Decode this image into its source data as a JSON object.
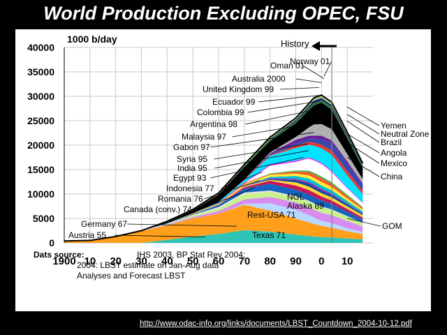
{
  "slide": {
    "title": "World Production Excluding OPEC, FSU",
    "footer_url": "http://www.odac-info.org/links/documents/LBST_Countdown_2004-10-12.pdf"
  },
  "source_note": {
    "label": "Dats source:",
    "line1": "IHS 2003, BP Stat Rev  2004;",
    "line2": "2004: LBST estimate on Jan-Aug data",
    "line3": "Analyses and Forecast LBST"
  },
  "history_label": "History",
  "colors": {
    "background": "#000000",
    "panel": "#ffffff",
    "title": "#ffffff",
    "leader_lines": "#000000",
    "history_divider": "#808080"
  },
  "chart_data": {
    "type": "area",
    "stacked": true,
    "units_label": "1000 b/day",
    "y_ticks": [
      "0",
      "5000",
      "10000",
      "15000",
      "20000",
      "25000",
      "30000",
      "35000",
      "40000"
    ],
    "x_ticks": [
      "1900",
      "10",
      "20",
      "30",
      "40",
      "50",
      "60",
      "70",
      "80",
      "90",
      "0",
      "10"
    ],
    "xlim": [
      1900,
      2020
    ],
    "ylim": [
      0,
      40000
    ],
    "grid": true,
    "history_end_year": 2004,
    "x": [
      1900,
      1910,
      1920,
      1930,
      1940,
      1950,
      1960,
      1970,
      1980,
      1990,
      1995,
      1997,
      2000,
      2004,
      2010,
      2016
    ],
    "series": [
      {
        "name": "Texas 71",
        "color": "#2ec4b6",
        "values": [
          0,
          0,
          0,
          0,
          600,
          1300,
          1800,
          2600,
          2300,
          1700,
          1400,
          1300,
          1200,
          1100,
          900,
          700
        ]
      },
      {
        "name": "Rest-USA 71",
        "color": "#ff9f1c",
        "values": [
          400,
          500,
          1200,
          2400,
          3000,
          3700,
          4200,
          5200,
          4300,
          3300,
          2800,
          2600,
          2300,
          2000,
          1500,
          1100
        ]
      },
      {
        "name": "Alaska 89",
        "color": "#b8d8ff",
        "values": [
          0,
          0,
          0,
          0,
          0,
          0,
          0,
          200,
          1500,
          1800,
          1500,
          1300,
          1000,
          900,
          600,
          400
        ]
      },
      {
        "name": "NGL",
        "color": "#d98cf0",
        "values": [
          0,
          0,
          0,
          0,
          150,
          300,
          500,
          900,
          1300,
          1500,
          1600,
          1600,
          1650,
          1650,
          1500,
          1200
        ]
      },
      {
        "name": "Canada (conv.) 74",
        "color": "#c8f08c",
        "values": [
          0,
          0,
          0,
          0,
          50,
          300,
          600,
          1100,
          1050,
          1100,
          1200,
          1200,
          1200,
          1100,
          900,
          650
        ]
      },
      {
        "name": "Romania 76",
        "color": "#e8e8e8",
        "values": [
          0,
          0,
          100,
          100,
          150,
          150,
          250,
          300,
          270,
          180,
          140,
          130,
          120,
          110,
          90,
          70
        ]
      },
      {
        "name": "Indonesia 77",
        "color": "#1565c0",
        "values": [
          0,
          0,
          0,
          0,
          100,
          150,
          400,
          800,
          1400,
          1300,
          1300,
          1300,
          1250,
          1100,
          900,
          700
        ]
      },
      {
        "name": "Egypt 93",
        "color": "#c2185b",
        "values": [
          0,
          0,
          0,
          0,
          0,
          0,
          50,
          300,
          600,
          870,
          900,
          870,
          780,
          700,
          550,
          400
        ]
      },
      {
        "name": "India 95",
        "color": "#fdd835",
        "values": [
          0,
          0,
          0,
          0,
          0,
          0,
          0,
          150,
          200,
          650,
          700,
          700,
          680,
          650,
          550,
          450
        ]
      },
      {
        "name": "Syria 95",
        "color": "#0d47a1",
        "values": [
          0,
          0,
          0,
          0,
          0,
          0,
          0,
          0,
          150,
          400,
          600,
          560,
          520,
          480,
          350,
          250
        ]
      },
      {
        "name": "Gabon 97",
        "color": "#9c27b0",
        "values": [
          0,
          0,
          0,
          0,
          0,
          0,
          0,
          100,
          180,
          270,
          350,
          370,
          330,
          270,
          180,
          120
        ]
      },
      {
        "name": "Malaysia 97",
        "color": "#00bcd4",
        "values": [
          0,
          0,
          0,
          0,
          0,
          0,
          0,
          0,
          250,
          600,
          700,
          720,
          700,
          680,
          550,
          400
        ]
      },
      {
        "name": "Argentina 98",
        "color": "#ffeb3b",
        "values": [
          0,
          0,
          0,
          0,
          0,
          100,
          150,
          350,
          450,
          500,
          650,
          700,
          750,
          700,
          550,
          400
        ]
      },
      {
        "name": "Colombia 99",
        "color": "#ff5722",
        "values": [
          0,
          0,
          0,
          0,
          0,
          50,
          100,
          200,
          120,
          400,
          600,
          650,
          700,
          600,
          450,
          300
        ]
      },
      {
        "name": "Ecuador 99",
        "color": "#4caf50",
        "values": [
          0,
          0,
          0,
          0,
          0,
          0,
          0,
          0,
          150,
          250,
          350,
          380,
          400,
          380,
          300,
          200
        ]
      },
      {
        "name": "United Kingdom 99",
        "color": "#ffffff",
        "values": [
          0,
          0,
          0,
          0,
          0,
          0,
          0,
          0,
          1600,
          1800,
          2500,
          2500,
          2600,
          2100,
          1300,
          800
        ]
      },
      {
        "name": "China",
        "color": "#ff00ff",
        "values": [
          0,
          0,
          0,
          0,
          0,
          0,
          50,
          150,
          200,
          200,
          200,
          200,
          200,
          200,
          150,
          100
        ]
      },
      {
        "name": "Mexico",
        "color": "#00e5ff",
        "values": [
          0,
          0,
          0,
          0,
          0,
          0,
          300,
          500,
          1800,
          2600,
          2600,
          2800,
          3000,
          3300,
          2500,
          1700
        ]
      },
      {
        "name": "Angola",
        "color": "#e53935",
        "values": [
          0,
          0,
          0,
          0,
          0,
          0,
          0,
          100,
          150,
          470,
          600,
          650,
          700,
          900,
          900,
          700
        ]
      },
      {
        "name": "Brazil",
        "color": "#3949ab",
        "values": [
          0,
          0,
          0,
          0,
          0,
          0,
          0,
          0,
          180,
          600,
          650,
          800,
          1200,
          1500,
          1500,
          1200
        ]
      },
      {
        "name": "Australia 2000",
        "color": "#6a1b9a",
        "values": [
          0,
          0,
          0,
          0,
          0,
          0,
          0,
          0,
          200,
          600,
          580,
          600,
          650,
          550,
          450,
          300
        ]
      },
      {
        "name": "Norway 01",
        "color": "#b0b0b0",
        "values": [
          0,
          0,
          0,
          0,
          0,
          0,
          0,
          0,
          200,
          600,
          1700,
          2300,
          2400,
          2300,
          1500,
          900
        ]
      },
      {
        "name": "Oman 01",
        "color": "#000000",
        "values": [
          0,
          0,
          0,
          0,
          200,
          600,
          1500,
          2600,
          2300,
          2800,
          3500,
          3900,
          4400,
          4000,
          3200,
          2300
        ]
      },
      {
        "name": "Neutral Zone",
        "color": "#2e7d32",
        "values": [
          0,
          0,
          0,
          0,
          0,
          0,
          0,
          200,
          350,
          370,
          450,
          450,
          500,
          520,
          450,
          350
        ]
      },
      {
        "name": "Yemen",
        "color": "#1a237e",
        "values": [
          0,
          0,
          0,
          0,
          0,
          0,
          0,
          0,
          100,
          300,
          400,
          500,
          450,
          420,
          350,
          250
        ]
      },
      {
        "name": "GOM",
        "color": "#aed581",
        "values": [
          0,
          0,
          0,
          0,
          0,
          0,
          50,
          100,
          200,
          300,
          400,
          500,
          500,
          500,
          400,
          300
        ]
      },
      {
        "name": "Germany 67",
        "color": "#795548",
        "values": [
          0,
          0,
          0,
          0,
          100,
          150,
          200,
          150,
          100,
          80,
          60,
          60,
          50,
          50,
          40,
          30
        ]
      },
      {
        "name": "Austria 55",
        "color": "#90a4ae",
        "values": [
          0,
          0,
          0,
          0,
          50,
          50,
          50,
          40,
          30,
          30,
          20,
          20,
          20,
          20,
          15,
          10
        ]
      }
    ],
    "annotations": [
      {
        "text": "Oman 01",
        "year": 2001,
        "value": 33600
      },
      {
        "text": "Norway 01",
        "year": 2001,
        "value": 34100
      },
      {
        "text": "Australia 2000",
        "year": 2000,
        "value": 32800
      },
      {
        "text": "United Kingdom 99",
        "year": 1999,
        "value": 31800
      },
      {
        "text": "Ecuador 99",
        "year": 1999,
        "value": 30200
      },
      {
        "text": "Colombia 99",
        "year": 1999,
        "value": 29000
      },
      {
        "text": "Argentina 98",
        "year": 1998,
        "value": 27300
      },
      {
        "text": "Malaysia 97",
        "year": 1997,
        "value": 24500
      },
      {
        "text": "Gabon 97",
        "year": 1997,
        "value": 22600
      },
      {
        "text": "Syria 95",
        "year": 1995,
        "value": 20300
      },
      {
        "text": "India 95",
        "year": 1995,
        "value": 18900
      },
      {
        "text": "Egypt 93",
        "year": 1993,
        "value": 17500
      },
      {
        "text": "Indonesia 77",
        "year": 1977,
        "value": 14500
      },
      {
        "text": "Romania 76",
        "year": 1976,
        "value": 12800
      },
      {
        "text": "Canada (conv.) 74",
        "year": 1974,
        "value": 11300
      },
      {
        "text": "Germany 67",
        "year": 1967,
        "value": 3400
      },
      {
        "text": "Austria 55",
        "year": 1955,
        "value": 1200
      },
      {
        "text": "NGL",
        "year": 1988,
        "value": 8500
      },
      {
        "text": "Alaska 89",
        "year": 1989,
        "value": 7500
      },
      {
        "text": "Rest-USA 71",
        "year": 1971,
        "value": 6000
      },
      {
        "text": "Texas 71",
        "year": 1971,
        "value": 1500
      },
      {
        "text": "Yemen",
        "year": 2010,
        "value": 27800
      },
      {
        "text": "Neutral Zone",
        "year": 2010,
        "value": 26300
      },
      {
        "text": "Brazil",
        "year": 2010,
        "value": 24900
      },
      {
        "text": "Angola",
        "year": 2010,
        "value": 22300
      },
      {
        "text": "Mexico",
        "year": 2010,
        "value": 20500
      },
      {
        "text": "China",
        "year": 2010,
        "value": 17500
      },
      {
        "text": "GOM",
        "year": 2010,
        "value": 5000
      }
    ]
  }
}
